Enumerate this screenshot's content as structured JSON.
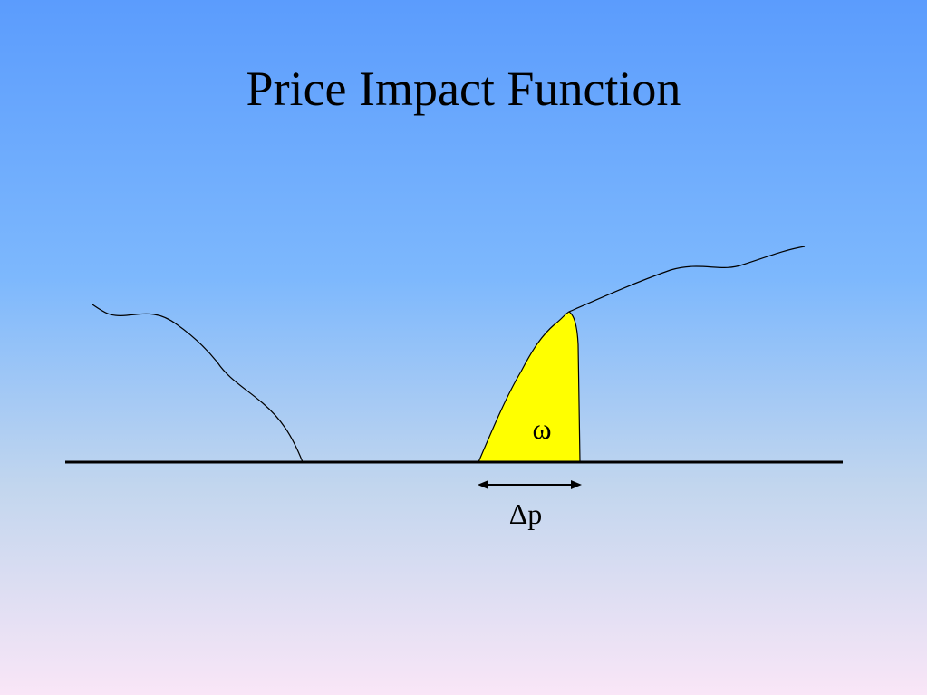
{
  "slide": {
    "title": "Price Impact Function"
  },
  "diagram": {
    "region_label": "ω",
    "width_label": "Δp",
    "region_fill_color": "#ffff00",
    "line_color": "#000000"
  }
}
